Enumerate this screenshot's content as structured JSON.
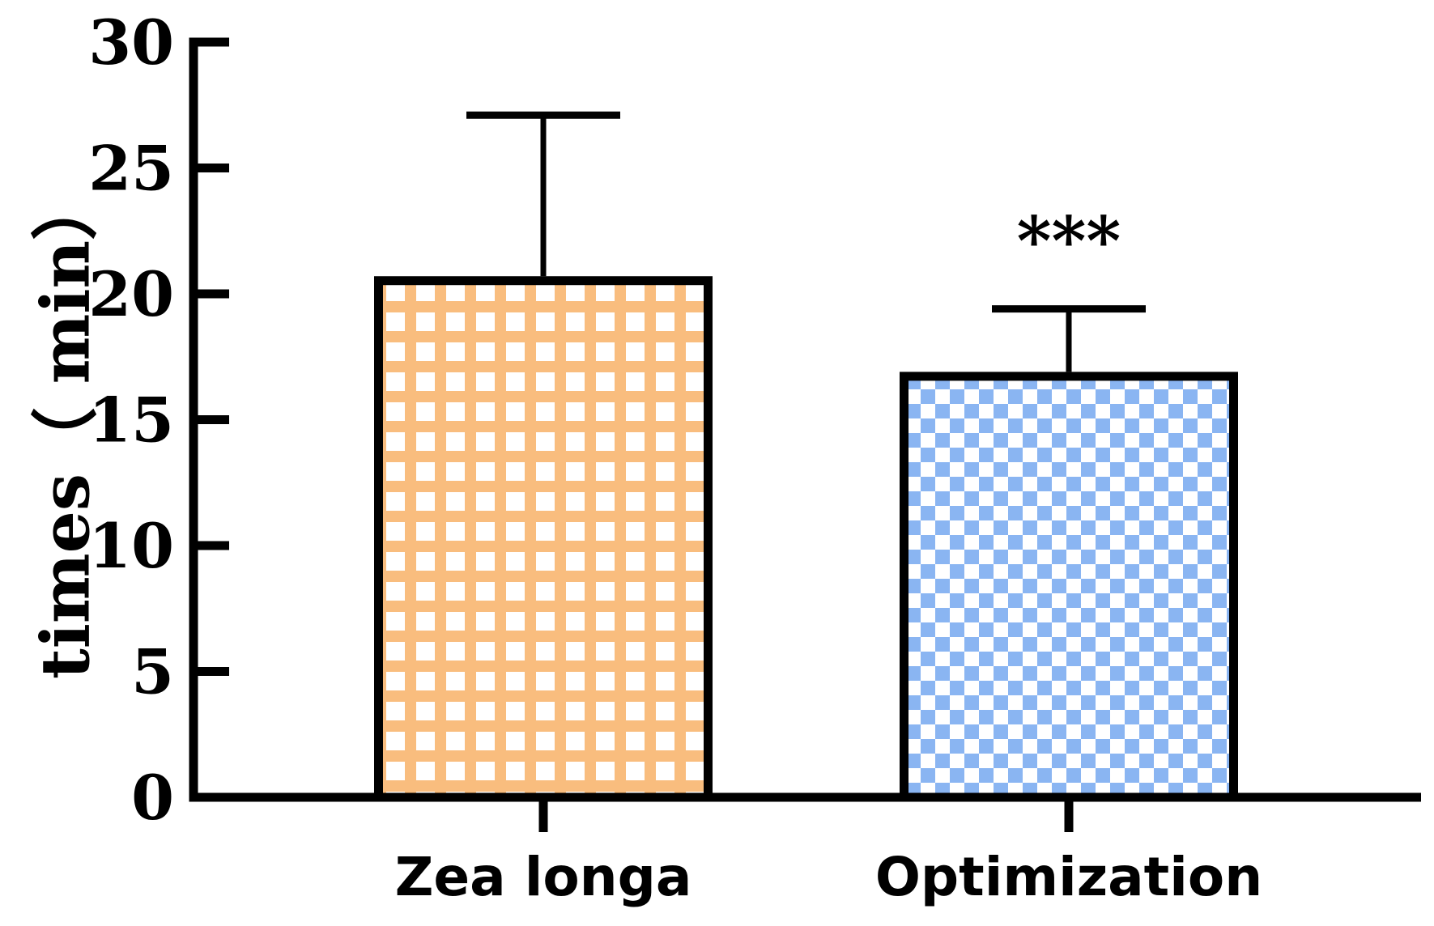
{
  "chart_data": {
    "type": "bar",
    "categories": [
      "Zea longa",
      "Optimization"
    ],
    "values": [
      20.7,
      16.9
    ],
    "error_upper": [
      27.1,
      19.4
    ],
    "ylabel": "times（ min）",
    "xlabel": "",
    "ylim": [
      0,
      30
    ],
    "yticks": [
      0,
      5,
      10,
      15,
      20,
      25,
      30
    ],
    "grid": false,
    "annotations": [
      {
        "category": "Optimization",
        "text": "***"
      }
    ],
    "colors": {
      "Zea longa": "#F9BD7E",
      "Optimization": "#8AB5F2",
      "outline": "#000000"
    },
    "patterns": {
      "Zea longa": "grid",
      "Optimization": "checkerboard"
    }
  }
}
